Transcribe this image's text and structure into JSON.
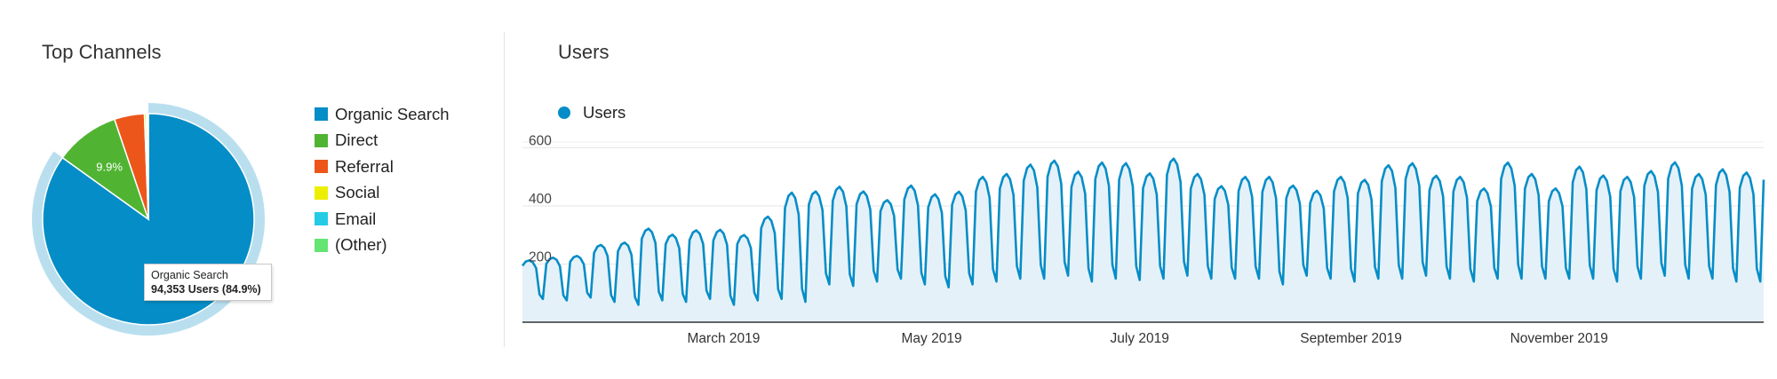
{
  "left": {
    "title": "Top Channels",
    "tooltip": {
      "line1": "Organic Search",
      "line2": "94,353 Users (84.9%)"
    }
  },
  "right": {
    "title": "Users",
    "legend_label": "Users"
  },
  "colors": {
    "organic": "#058dc7",
    "direct": "#50b432",
    "referral": "#ed561b",
    "social": "#edef00",
    "email": "#24cbe5",
    "other": "#64e572",
    "line": "#058dc7",
    "area": "#e5f1f8"
  },
  "chart_data": [
    {
      "type": "pie",
      "title": "Top Channels",
      "legend_position": "right",
      "slices": [
        {
          "name": "Organic Search",
          "percent": 84.9,
          "value": 94353,
          "color": "#058dc7",
          "label": ""
        },
        {
          "name": "Direct",
          "percent": 9.9,
          "color": "#50b432",
          "label": "9.9%"
        },
        {
          "name": "Referral",
          "percent": 4.6,
          "color": "#ed561b",
          "label": ""
        },
        {
          "name": "Social",
          "percent": 0.3,
          "color": "#edef00",
          "label": ""
        },
        {
          "name": "Email",
          "percent": 0.2,
          "color": "#24cbe5",
          "label": ""
        },
        {
          "name": "(Other)",
          "percent": 0.1,
          "color": "#64e572",
          "label": ""
        }
      ],
      "highlighted": "Organic Search"
    },
    {
      "type": "area",
      "title": "Users",
      "legend_position": "top-left",
      "grid": true,
      "ylim": [
        0,
        620
      ],
      "y_ticks": [
        "200",
        "400",
        "600"
      ],
      "y_tick_values": [
        200,
        400,
        600
      ],
      "x_labels": [
        "March 2019",
        "May 2019",
        "July 2019",
        "September 2019",
        "November 2019"
      ],
      "x_label_day_index": [
        59,
        120,
        181,
        243,
        304
      ],
      "series": [
        {
          "name": "Users",
          "color": "#058dc7",
          "weekly_peaks": [
            213,
            222,
            228,
            266,
            274,
            322,
            301,
            316,
            318,
            300,
            363,
            446,
            450,
            466,
            450,
            420,
            470,
            440,
            449,
            500,
            510,
            542,
            556,
            518,
            549,
            547,
            512,
            563,
            510,
            468,
            500,
            500,
            470,
            452,
            500,
            490,
            540,
            547,
            504,
            500,
            460,
            549,
            510,
            460,
            535,
            505,
            500,
            520,
            550,
            510,
            526,
            515,
            546,
            500,
            480,
            452,
            450,
            500,
            460,
            478,
            470,
            440
          ],
          "weekly_lows": [
            80,
            75,
            85,
            70,
            60,
            75,
            70,
            80,
            60,
            75,
            80,
            70,
            130,
            125,
            140,
            150,
            130,
            120,
            130,
            140,
            150,
            150,
            160,
            140,
            150,
            145,
            150,
            160,
            150,
            150,
            150,
            130,
            160,
            150,
            140,
            150,
            150,
            160,
            150,
            140,
            150,
            150,
            150,
            150,
            150,
            140,
            150,
            160,
            150,
            150,
            140,
            140,
            150,
            160,
            150,
            150,
            150,
            150,
            160,
            140,
            150,
            140
          ]
        }
      ]
    }
  ]
}
